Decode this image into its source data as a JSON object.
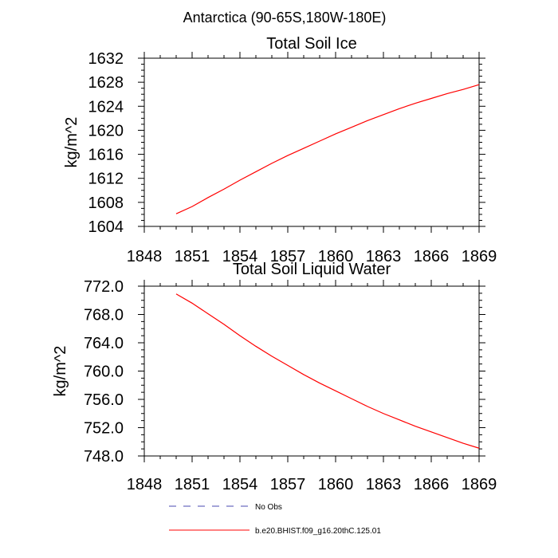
{
  "figure": {
    "title": "Antarctica (90-65S,180W-180E)"
  },
  "chart_data": [
    {
      "type": "line",
      "title": "Total Soil Ice",
      "xlabel": "",
      "ylabel": "kg/m^2",
      "xlim": [
        1848,
        1869
      ],
      "ylim": [
        1604,
        1632
      ],
      "x_ticks": [
        1848,
        1851,
        1854,
        1857,
        1860,
        1863,
        1866,
        1869
      ],
      "x_tick_labels": [
        "1848",
        "1851",
        "1854",
        "1857",
        "1860",
        "1863",
        "1866",
        "1869"
      ],
      "y_ticks": [
        1604,
        1608,
        1612,
        1616,
        1620,
        1624,
        1628,
        1632
      ],
      "y_tick_labels": [
        "1604",
        "1608",
        "1612",
        "1616",
        "1620",
        "1624",
        "1628",
        "1632"
      ],
      "grid": false,
      "series": [
        {
          "name": "b.e20.BHIST.f09_g16.20thC.125.01",
          "color": "#ff0000",
          "x": [
            1850,
            1851,
            1852,
            1853,
            1854,
            1855,
            1856,
            1857,
            1858,
            1859,
            1860,
            1861,
            1862,
            1863,
            1864,
            1865,
            1866,
            1867,
            1868,
            1869
          ],
          "y": [
            1606.1,
            1607.3,
            1608.8,
            1610.2,
            1611.7,
            1613.1,
            1614.5,
            1615.8,
            1617.0,
            1618.2,
            1619.4,
            1620.5,
            1621.6,
            1622.6,
            1623.6,
            1624.5,
            1625.3,
            1626.1,
            1626.8,
            1627.6
          ]
        }
      ]
    },
    {
      "type": "line",
      "title": "Total Soil Liquid Water",
      "xlabel": "",
      "ylabel": "kg/m^2",
      "xlim": [
        1848,
        1869
      ],
      "ylim": [
        748,
        772
      ],
      "x_ticks": [
        1848,
        1851,
        1854,
        1857,
        1860,
        1863,
        1866,
        1869
      ],
      "x_tick_labels": [
        "1848",
        "1851",
        "1854",
        "1857",
        "1860",
        "1863",
        "1866",
        "1869"
      ],
      "y_ticks": [
        748,
        752,
        756,
        760,
        764,
        768,
        772
      ],
      "y_tick_labels": [
        "748.0",
        "752.0",
        "756.0",
        "760.0",
        "764.0",
        "768.0",
        "772.0"
      ],
      "grid": false,
      "series": [
        {
          "name": "b.e20.BHIST.f09_g16.20thC.125.01",
          "color": "#ff0000",
          "x": [
            1850,
            1851,
            1852,
            1853,
            1854,
            1855,
            1856,
            1857,
            1858,
            1859,
            1860,
            1861,
            1862,
            1863,
            1864,
            1865,
            1866,
            1867,
            1868,
            1869
          ],
          "y": [
            770.9,
            769.6,
            768.1,
            766.6,
            765.0,
            763.5,
            762.1,
            760.8,
            759.5,
            758.3,
            757.2,
            756.1,
            755.0,
            754.0,
            753.1,
            752.2,
            751.4,
            750.6,
            749.8,
            749.1
          ]
        }
      ]
    }
  ],
  "legend": {
    "placement": "bottom",
    "entries": [
      {
        "label": "No Obs",
        "color": "#4a4ab0",
        "style": "dashed"
      },
      {
        "label": "b.e20.BHIST.f09_g16.20thC.125.01",
        "color": "#ff0000",
        "style": "solid"
      }
    ]
  }
}
